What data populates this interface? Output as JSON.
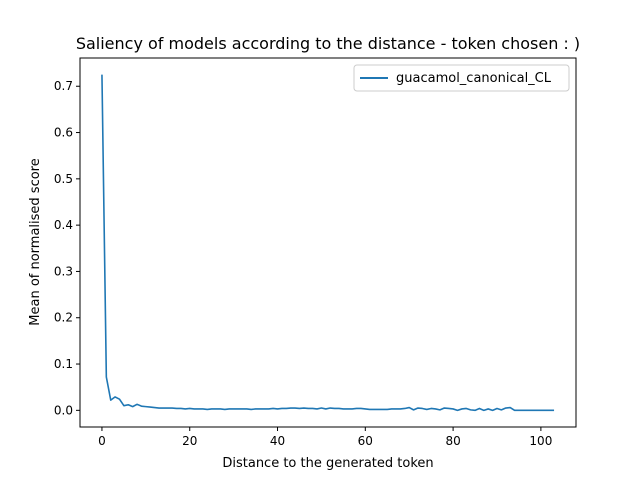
{
  "chart_data": {
    "type": "line",
    "title": "Saliency of models according to the distance - token chosen : )",
    "xlabel": "Distance to the generated token",
    "ylabel": "Mean of normalised score",
    "xlim": [
      -5,
      108
    ],
    "ylim": [
      -0.036,
      0.761
    ],
    "xticks": [
      0,
      20,
      40,
      60,
      80,
      100
    ],
    "yticks": [
      0.0,
      0.1,
      0.2,
      0.3,
      0.4,
      0.5,
      0.6,
      0.7
    ],
    "xtick_labels": [
      "0",
      "20",
      "40",
      "60",
      "80",
      "100"
    ],
    "ytick_labels": [
      "0.0",
      "0.1",
      "0.2",
      "0.3",
      "0.4",
      "0.5",
      "0.6",
      "0.7"
    ],
    "grid": false,
    "legend_position": "upper right",
    "series": [
      {
        "name": "guacamol_canonical_CL",
        "color": "#1f77b4",
        "x": [
          0,
          1,
          2,
          3,
          4,
          5,
          6,
          7,
          8,
          9,
          10,
          11,
          12,
          13,
          14,
          15,
          16,
          17,
          18,
          19,
          20,
          21,
          22,
          23,
          24,
          25,
          26,
          27,
          28,
          29,
          30,
          31,
          32,
          33,
          34,
          35,
          36,
          37,
          38,
          39,
          40,
          41,
          42,
          43,
          44,
          45,
          46,
          47,
          48,
          49,
          50,
          51,
          52,
          53,
          54,
          55,
          56,
          57,
          58,
          59,
          60,
          61,
          62,
          63,
          64,
          65,
          66,
          67,
          68,
          69,
          70,
          71,
          72,
          73,
          74,
          75,
          76,
          77,
          78,
          79,
          80,
          81,
          82,
          83,
          84,
          85,
          86,
          87,
          88,
          89,
          90,
          91,
          92,
          93,
          94,
          95,
          96,
          97,
          98,
          99,
          100,
          101,
          102,
          103
        ],
        "y": [
          0.725,
          0.072,
          0.022,
          0.029,
          0.024,
          0.01,
          0.012,
          0.008,
          0.013,
          0.009,
          0.008,
          0.007,
          0.006,
          0.005,
          0.005,
          0.005,
          0.005,
          0.004,
          0.004,
          0.003,
          0.004,
          0.003,
          0.003,
          0.003,
          0.002,
          0.003,
          0.003,
          0.003,
          0.002,
          0.003,
          0.003,
          0.003,
          0.003,
          0.003,
          0.002,
          0.003,
          0.003,
          0.003,
          0.003,
          0.004,
          0.003,
          0.004,
          0.004,
          0.005,
          0.005,
          0.004,
          0.005,
          0.004,
          0.004,
          0.003,
          0.005,
          0.003,
          0.005,
          0.004,
          0.004,
          0.003,
          0.003,
          0.003,
          0.004,
          0.004,
          0.003,
          0.002,
          0.002,
          0.002,
          0.002,
          0.002,
          0.003,
          0.003,
          0.003,
          0.004,
          0.006,
          0.001,
          0.005,
          0.004,
          0.002,
          0.004,
          0.003,
          0.001,
          0.005,
          0.004,
          0.003,
          0.0,
          0.003,
          0.004,
          0.001,
          0.0,
          0.004,
          0.0,
          0.003,
          0.0,
          0.004,
          0.001,
          0.005,
          0.006,
          0.0,
          0.0,
          0.0,
          0.0,
          0.0,
          0.0,
          0.0,
          0.0,
          0.0,
          0.0
        ]
      }
    ]
  }
}
